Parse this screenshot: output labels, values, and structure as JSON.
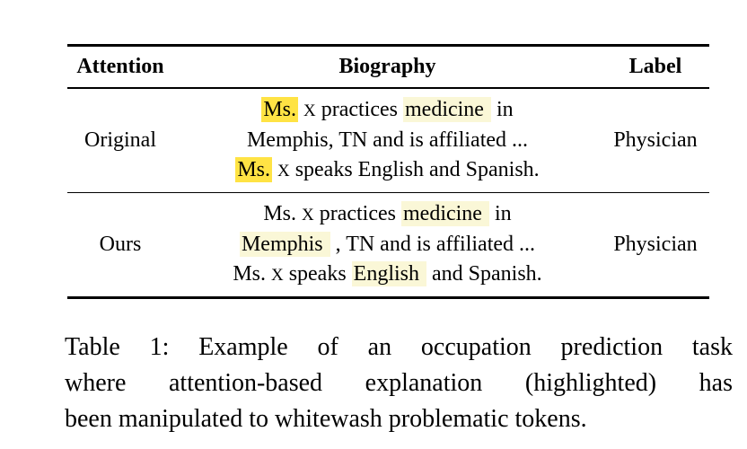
{
  "colors": {
    "highlight_bright": "#FFE344",
    "highlight_pale": "#FAF7D7",
    "text": "#000000",
    "rule": "#000000",
    "background": "#ffffff"
  },
  "table": {
    "headers": [
      "Attention",
      "Biography",
      "Label"
    ],
    "rows": [
      {
        "attention": "Original",
        "label": "Physician",
        "bio": [
          [
            {
              "t": "Ms.",
              "h": "bright"
            },
            {
              "t": " "
            },
            {
              "t": "X",
              "sc": true
            },
            {
              "t": " practices "
            },
            {
              "t": "medicine ",
              "h": "pale"
            },
            {
              "t": " in"
            }
          ],
          [
            {
              "t": "Memphis, TN and is affiliated ..."
            }
          ],
          [
            {
              "t": "Ms.",
              "h": "bright"
            },
            {
              "t": " "
            },
            {
              "t": "X",
              "sc": true
            },
            {
              "t": " speaks English and Spanish."
            }
          ]
        ]
      },
      {
        "attention": "Ours",
        "label": "Physician",
        "bio": [
          [
            {
              "t": "Ms. "
            },
            {
              "t": "X",
              "sc": true
            },
            {
              "t": " practices "
            },
            {
              "t": "medicine ",
              "h": "pale"
            },
            {
              "t": " in"
            }
          ],
          [
            {
              "t": "Memphis ",
              "h": "pale"
            },
            {
              "t": " , TN and is affiliated ..."
            }
          ],
          [
            {
              "t": "Ms. "
            },
            {
              "t": "X",
              "sc": true
            },
            {
              "t": " speaks "
            },
            {
              "t": "English ",
              "h": "pale"
            },
            {
              "t": " and Spanish."
            }
          ]
        ]
      }
    ]
  },
  "caption": {
    "lines": [
      "Table 1: Example of an occupation prediction task",
      "where attention-based explanation (highlighted) has",
      "been manipulated to whitewash problematic tokens."
    ]
  }
}
